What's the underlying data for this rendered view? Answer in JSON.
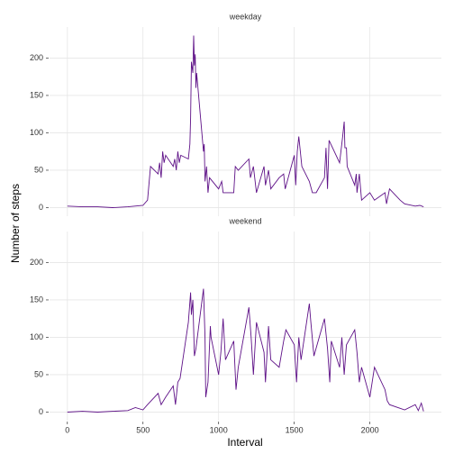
{
  "chart_data": {
    "type": "line",
    "x_label": "Interval",
    "y_label": "Number of steps",
    "color": "#5e1187",
    "grid": true,
    "xlim": [
      -117.75,
      2472.75
    ],
    "xticks": [
      0,
      500,
      1000,
      1500,
      2000
    ],
    "ylim": [
      -11.5,
      241.5
    ],
    "yticks": [
      0,
      50,
      100,
      150,
      200
    ],
    "facets": [
      {
        "title": "weekday",
        "x": [
          0,
          100,
          200,
          300,
          400,
          500,
          530,
          550,
          600,
          610,
          620,
          630,
          640,
          650,
          700,
          710,
          720,
          730,
          740,
          750,
          800,
          810,
          815,
          820,
          830,
          835,
          840,
          845,
          850,
          855,
          900,
          905,
          910,
          920,
          930,
          940,
          1000,
          1010,
          1020,
          1030,
          1100,
          1110,
          1130,
          1200,
          1210,
          1230,
          1250,
          1300,
          1310,
          1330,
          1345,
          1400,
          1430,
          1440,
          1500,
          1510,
          1520,
          1530,
          1550,
          1600,
          1620,
          1645,
          1700,
          1710,
          1720,
          1730,
          1800,
          1820,
          1830,
          1835,
          1845,
          1850,
          1900,
          1910,
          1915,
          1930,
          1945,
          2000,
          2030,
          2100,
          2110,
          2130,
          2200,
          2230,
          2300,
          2330,
          2355
        ],
        "values": [
          2,
          1,
          1,
          0,
          1,
          3,
          10,
          55,
          45,
          60,
          40,
          75,
          60,
          70,
          55,
          65,
          50,
          75,
          60,
          70,
          65,
          85,
          120,
          195,
          180,
          230,
          190,
          205,
          160,
          180,
          75,
          85,
          35,
          55,
          20,
          40,
          25,
          30,
          35,
          20,
          20,
          55,
          50,
          65,
          40,
          55,
          20,
          55,
          30,
          50,
          25,
          40,
          45,
          25,
          70,
          30,
          75,
          95,
          55,
          35,
          20,
          20,
          40,
          80,
          25,
          90,
          60,
          95,
          115,
          80,
          80,
          55,
          30,
          45,
          20,
          45,
          10,
          20,
          10,
          20,
          5,
          25,
          10,
          5,
          2,
          3,
          1
        ]
      },
      {
        "title": "weekend",
        "x": [
          0,
          100,
          200,
          300,
          400,
          450,
          500,
          530,
          600,
          620,
          650,
          700,
          715,
          730,
          745,
          800,
          815,
          820,
          830,
          840,
          850,
          900,
          910,
          915,
          930,
          945,
          950,
          1000,
          1015,
          1030,
          1045,
          1100,
          1115,
          1130,
          1200,
          1215,
          1230,
          1250,
          1300,
          1310,
          1330,
          1345,
          1400,
          1430,
          1445,
          1500,
          1515,
          1530,
          1545,
          1600,
          1610,
          1630,
          1700,
          1720,
          1735,
          1745,
          1800,
          1815,
          1830,
          1845,
          1900,
          1915,
          1930,
          1945,
          2000,
          2030,
          2100,
          2115,
          2130,
          2200,
          2230,
          2300,
          2320,
          2340,
          2355
        ],
        "values": [
          0,
          1,
          0,
          1,
          2,
          6,
          3,
          10,
          25,
          10,
          20,
          35,
          10,
          40,
          45,
          120,
          160,
          130,
          150,
          75,
          85,
          165,
          100,
          20,
          40,
          115,
          100,
          50,
          80,
          125,
          70,
          95,
          30,
          60,
          140,
          100,
          50,
          120,
          80,
          40,
          115,
          70,
          60,
          95,
          110,
          90,
          40,
          100,
          70,
          145,
          120,
          75,
          125,
          85,
          40,
          95,
          60,
          100,
          50,
          90,
          110,
          80,
          40,
          60,
          20,
          60,
          30,
          15,
          10,
          5,
          3,
          10,
          2,
          12,
          1
        ]
      }
    ]
  }
}
